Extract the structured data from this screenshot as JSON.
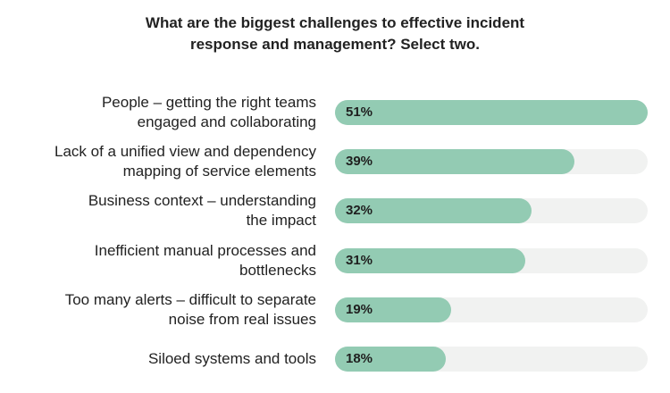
{
  "title_lines": [
    "What are the biggest challenges to effective incident",
    "response and management? Select two."
  ],
  "colors": {
    "bar": "#93cbb3",
    "track": "#f1f2f1"
  },
  "chart_data": {
    "type": "bar",
    "orientation": "horizontal",
    "title": "What are the biggest challenges to effective incident response and management? Select two.",
    "categories": [
      [
        "People – getting the right teams",
        "engaged and collaborating"
      ],
      [
        "Lack of a unified view and dependency",
        "mapping of service elements"
      ],
      [
        "Business context – understanding",
        "the impact"
      ],
      [
        "Inefficient manual processes and",
        "bottlenecks"
      ],
      [
        "Too many alerts – difficult to separate",
        "noise from real issues"
      ],
      [
        "Siloed systems and tools"
      ]
    ],
    "values": [
      51,
      39,
      32,
      31,
      19,
      18
    ],
    "value_labels": [
      "51%",
      "39%",
      "32%",
      "31%",
      "19%",
      "18%"
    ],
    "xlim": [
      0,
      51
    ],
    "grid": false,
    "legend": "none"
  }
}
